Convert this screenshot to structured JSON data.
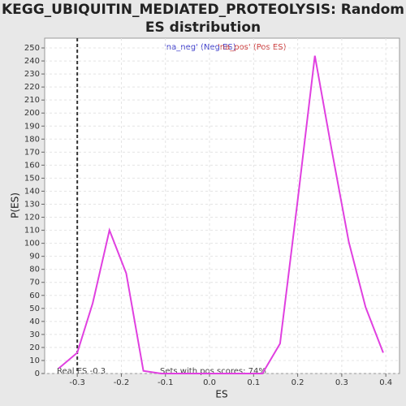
{
  "chart_data": {
    "type": "line",
    "title": [
      "KEGG_UBIQUITIN_MEDIATED_PROTEOLYSIS: Random",
      "ES distribution"
    ],
    "xlabel": "ES",
    "ylabel": "P(ES)",
    "legend": [
      {
        "name": "'na_neg' (Neg ES)",
        "color": "#4040cc"
      },
      {
        "name": "'na_pos' (Pos ES)",
        "color": "#cc4040"
      }
    ],
    "real_es": -0.3,
    "real_es_label": "Real ES -0.3",
    "annotation": "Sets with pos scores: 74%",
    "x": [
      -0.342,
      -0.3,
      -0.265,
      -0.227,
      -0.189,
      -0.15,
      -0.11,
      -0.072,
      -0.033,
      0.005,
      0.044,
      0.082,
      0.12,
      0.16,
      0.2,
      0.239,
      0.277,
      0.316,
      0.354,
      0.394
    ],
    "series": [
      {
        "name": "P(ES)",
        "color": "#e040e0",
        "values": [
          4,
          16,
          54,
          110,
          77,
          2,
          0,
          0,
          0,
          0,
          0,
          0,
          0,
          23,
          133,
          244,
          172,
          101,
          51,
          16
        ]
      }
    ],
    "xlim": [
      -0.374,
      0.431
    ],
    "ylim": [
      0,
      257.5
    ],
    "xticks": [
      -0.3,
      -0.2,
      -0.1,
      {
        "value": 0,
        "label": "0.0"
      },
      0.1,
      0.2,
      0.3,
      0.4
    ],
    "yticks": [
      0,
      10,
      20,
      30,
      40,
      50,
      60,
      70,
      80,
      90,
      100,
      110,
      120,
      130,
      140,
      150,
      160,
      170,
      180,
      190,
      200,
      210,
      220,
      230,
      240,
      250
    ],
    "grid": true
  }
}
